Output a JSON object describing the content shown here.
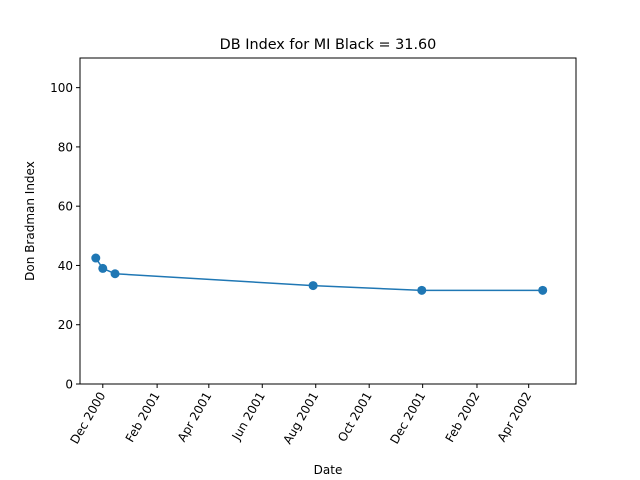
{
  "chart_data": {
    "type": "line",
    "title": "DB Index for MI Black = 31.60",
    "xlabel": "Date",
    "ylabel": "Don Bradman Index",
    "xlim": [
      "2000-11-05",
      "2002-05-25"
    ],
    "ylim": [
      0,
      110
    ],
    "x_ticks": [
      {
        "date": "2000-12-01",
        "label": "Dec 2000"
      },
      {
        "date": "2001-02-01",
        "label": "Feb 2001"
      },
      {
        "date": "2001-04-01",
        "label": "Apr 2001"
      },
      {
        "date": "2001-06-01",
        "label": "Jun 2001"
      },
      {
        "date": "2001-08-01",
        "label": "Aug 2001"
      },
      {
        "date": "2001-10-01",
        "label": "Oct 2001"
      },
      {
        "date": "2001-12-01",
        "label": "Dec 2001"
      },
      {
        "date": "2002-02-01",
        "label": "Feb 2002"
      },
      {
        "date": "2002-04-01",
        "label": "Apr 2002"
      }
    ],
    "y_ticks": [
      0,
      20,
      40,
      60,
      80,
      100
    ],
    "series": [
      {
        "name": "DB Index",
        "color": "#1f77b4",
        "x": [
          "2000-11-23",
          "2000-12-01",
          "2000-12-15",
          "2001-07-29",
          "2001-11-30",
          "2002-04-17"
        ],
        "values": [
          42.5,
          39.0,
          37.2,
          33.2,
          31.6,
          31.6
        ]
      }
    ]
  }
}
